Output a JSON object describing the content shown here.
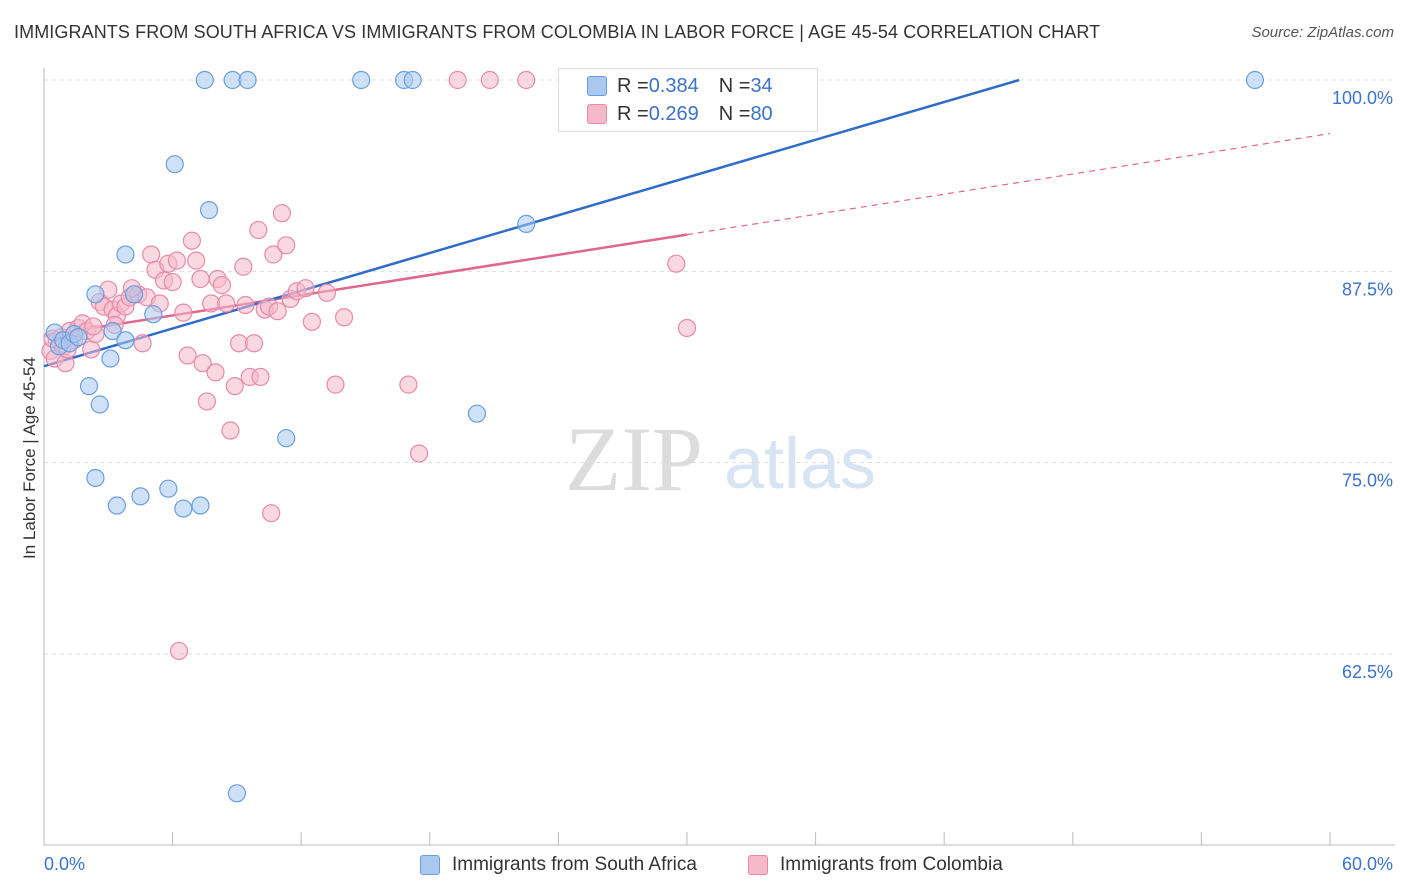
{
  "title": "IMMIGRANTS FROM SOUTH AFRICA VS IMMIGRANTS FROM COLOMBIA IN LABOR FORCE | AGE 45-54 CORRELATION CHART",
  "source": "Source: ZipAtlas.com",
  "watermark": {
    "zip": "ZIP",
    "atlas": "atlas"
  },
  "colors": {
    "blue_fill": "#a8c8f0",
    "blue_stroke": "#6a9fdc",
    "blue_line": "#2f6cc7",
    "pink_fill": "#f6b8cb",
    "pink_stroke": "#e88aa8",
    "pink_line": "#e0668f",
    "axis_text": "#3a73c8",
    "grid": "#dddddd"
  },
  "legend": {
    "series1": {
      "r_label": "R = ",
      "r_value": "0.384",
      "n_label": "N = ",
      "n_value": "34"
    },
    "series2": {
      "r_label": "R = ",
      "r_value": "0.269",
      "n_label": "N = ",
      "n_value": "80"
    }
  },
  "chart_data": {
    "type": "scatter",
    "title": "IMMIGRANTS FROM SOUTH AFRICA VS IMMIGRANTS FROM COLOMBIA IN LABOR FORCE | AGE 45-54 CORRELATION CHART",
    "xlabel": "",
    "ylabel": "In Labor Force | Age 45-54",
    "xlim": [
      0,
      60
    ],
    "ylim": [
      50,
      101.5
    ],
    "x_tick_labels": [
      "0.0%",
      "60.0%"
    ],
    "y_ticks": [
      62.5,
      75.0,
      87.5,
      100.0
    ],
    "y_tick_labels": [
      "62.5%",
      "75.0%",
      "87.5%",
      "100.0%"
    ],
    "series": [
      {
        "name": "Immigrants from South Africa",
        "r": 0.384,
        "n": 34,
        "trend": {
          "x": [
            0,
            45.5
          ],
          "y": [
            81.3,
            100.0
          ],
          "dashed_to": null
        },
        "points": [
          [
            0.5,
            83.5
          ],
          [
            0.7,
            82.6
          ],
          [
            0.9,
            83.0
          ],
          [
            1.2,
            82.8
          ],
          [
            1.4,
            83.4
          ],
          [
            1.6,
            83.2
          ],
          [
            2.1,
            80.0
          ],
          [
            2.6,
            78.8
          ],
          [
            2.4,
            74.0
          ],
          [
            3.2,
            83.6
          ],
          [
            2.4,
            86.0
          ],
          [
            3.8,
            88.6
          ],
          [
            3.1,
            81.8
          ],
          [
            3.8,
            83.0
          ],
          [
            4.2,
            86.0
          ],
          [
            5.1,
            84.7
          ],
          [
            4.5,
            72.8
          ],
          [
            3.4,
            72.2
          ],
          [
            5.8,
            73.3
          ],
          [
            6.5,
            72.0
          ],
          [
            7.3,
            72.2
          ],
          [
            6.1,
            94.5
          ],
          [
            7.7,
            91.5
          ],
          [
            7.5,
            100.0
          ],
          [
            8.8,
            100.0
          ],
          [
            9.5,
            100.0
          ],
          [
            11.3,
            76.6
          ],
          [
            14.8,
            100.0
          ],
          [
            16.8,
            100.0
          ],
          [
            17.2,
            100.0
          ],
          [
            20.2,
            78.2
          ],
          [
            22.5,
            90.6
          ],
          [
            56.5,
            100.0
          ],
          [
            9.0,
            53.4
          ]
        ]
      },
      {
        "name": "Immigrants from Colombia",
        "r": 0.269,
        "n": 80,
        "trend": {
          "x": [
            0,
            30.0
          ],
          "y": [
            83.3,
            89.9
          ],
          "dashed_to": {
            "x": 60,
            "y": 96.5
          }
        },
        "points": [
          [
            0.3,
            82.3
          ],
          [
            0.5,
            81.8
          ],
          [
            0.6,
            83.0
          ],
          [
            0.8,
            83.2
          ],
          [
            0.9,
            82.6
          ],
          [
            1.0,
            81.5
          ],
          [
            1.2,
            83.6
          ],
          [
            1.4,
            83.0
          ],
          [
            1.6,
            83.8
          ],
          [
            1.8,
            84.1
          ],
          [
            2.0,
            83.6
          ],
          [
            2.2,
            82.4
          ],
          [
            2.4,
            83.4
          ],
          [
            2.6,
            85.5
          ],
          [
            2.8,
            85.2
          ],
          [
            3.0,
            86.3
          ],
          [
            3.2,
            85.0
          ],
          [
            3.4,
            84.6
          ],
          [
            3.6,
            85.4
          ],
          [
            3.8,
            85.2
          ],
          [
            4.0,
            85.8
          ],
          [
            4.2,
            86.0
          ],
          [
            4.4,
            86.0
          ],
          [
            4.6,
            82.8
          ],
          [
            4.8,
            85.8
          ],
          [
            5.0,
            88.6
          ],
          [
            5.2,
            87.6
          ],
          [
            5.4,
            85.4
          ],
          [
            5.6,
            86.9
          ],
          [
            5.8,
            88.0
          ],
          [
            6.0,
            86.8
          ],
          [
            6.2,
            88.2
          ],
          [
            6.5,
            84.8
          ],
          [
            6.7,
            82.0
          ],
          [
            6.9,
            89.5
          ],
          [
            7.1,
            88.2
          ],
          [
            7.3,
            87.0
          ],
          [
            7.4,
            81.5
          ],
          [
            7.6,
            79.0
          ],
          [
            7.8,
            85.4
          ],
          [
            8.0,
            80.9
          ],
          [
            8.1,
            87.0
          ],
          [
            8.3,
            86.6
          ],
          [
            8.5,
            85.4
          ],
          [
            8.7,
            77.1
          ],
          [
            8.9,
            80.0
          ],
          [
            9.1,
            82.8
          ],
          [
            9.3,
            87.8
          ],
          [
            9.4,
            85.3
          ],
          [
            9.6,
            80.6
          ],
          [
            9.8,
            82.8
          ],
          [
            10.0,
            90.2
          ],
          [
            10.1,
            80.6
          ],
          [
            10.3,
            85.0
          ],
          [
            10.5,
            85.2
          ],
          [
            10.7,
            88.6
          ],
          [
            10.9,
            84.9
          ],
          [
            11.1,
            91.3
          ],
          [
            11.3,
            89.2
          ],
          [
            11.5,
            85.7
          ],
          [
            11.8,
            86.2
          ],
          [
            12.2,
            86.4
          ],
          [
            12.5,
            84.2
          ],
          [
            13.2,
            86.1
          ],
          [
            13.6,
            80.1
          ],
          [
            14.0,
            84.5
          ],
          [
            17.0,
            80.1
          ],
          [
            17.5,
            75.6
          ],
          [
            30.0,
            83.8
          ],
          [
            29.5,
            88.0
          ],
          [
            6.3,
            62.7
          ],
          [
            10.6,
            71.7
          ],
          [
            19.3,
            100.0
          ],
          [
            20.8,
            100.0
          ],
          [
            22.5,
            100.0
          ],
          [
            4.1,
            86.4
          ],
          [
            2.3,
            83.9
          ],
          [
            1.1,
            82.4
          ],
          [
            3.3,
            84.0
          ],
          [
            0.4,
            83.1
          ]
        ]
      }
    ]
  },
  "bottom_legend": {
    "series1_label": "Immigrants from South Africa",
    "series2_label": "Immigrants from Colombia"
  }
}
